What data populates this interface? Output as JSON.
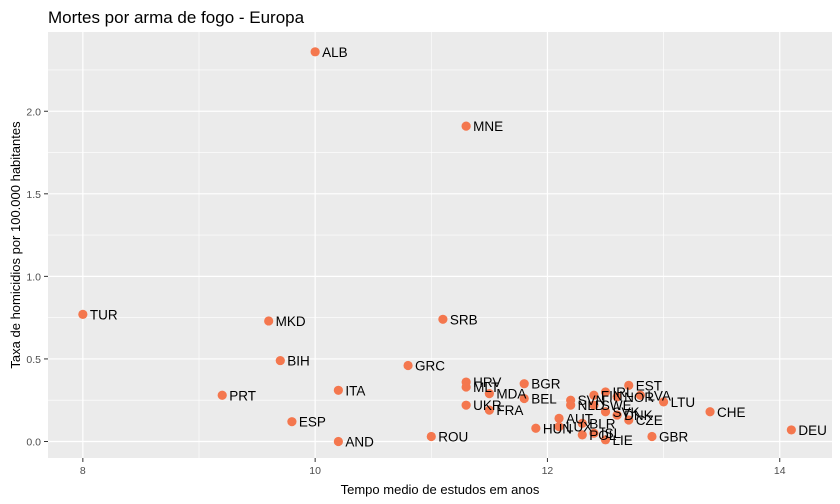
{
  "chart_data": {
    "type": "scatter",
    "title": "Mortes por arma de fogo - Europa",
    "xlabel": "Tempo medio de estudos em anos",
    "ylabel": "Taxa de homicidios por 100.000 habitantes",
    "xlim": [
      7.7,
      14.45
    ],
    "ylim": [
      -0.1,
      2.48
    ],
    "xticks": [
      8,
      10,
      12,
      14
    ],
    "yticks": [
      0.0,
      0.5,
      1.0,
      1.5,
      2.0
    ],
    "ytick_labels": [
      "0.0",
      "0.5",
      "1.0",
      "1.5",
      "2.0"
    ],
    "grid": true,
    "point_color": "#F4774E",
    "panel_background": "#EBEBEB",
    "points": [
      {
        "label": "ALB",
        "x": 10.0,
        "y": 2.36
      },
      {
        "label": "MNE",
        "x": 11.3,
        "y": 1.91
      },
      {
        "label": "TUR",
        "x": 8.0,
        "y": 0.77
      },
      {
        "label": "MKD",
        "x": 9.6,
        "y": 0.73
      },
      {
        "label": "SRB",
        "x": 11.1,
        "y": 0.74
      },
      {
        "label": "BIH",
        "x": 9.7,
        "y": 0.49
      },
      {
        "label": "GRC",
        "x": 10.8,
        "y": 0.46
      },
      {
        "label": "ITA",
        "x": 10.2,
        "y": 0.31
      },
      {
        "label": "PRT",
        "x": 9.2,
        "y": 0.28
      },
      {
        "label": "ESP",
        "x": 9.8,
        "y": 0.12
      },
      {
        "label": "AND",
        "x": 10.2,
        "y": 0.0
      },
      {
        "label": "ROU",
        "x": 11.0,
        "y": 0.03
      },
      {
        "label": "HRV",
        "x": 11.3,
        "y": 0.36
      },
      {
        "label": "MLT",
        "x": 11.3,
        "y": 0.33
      },
      {
        "label": "UKR",
        "x": 11.3,
        "y": 0.22
      },
      {
        "label": "MDA",
        "x": 11.5,
        "y": 0.29
      },
      {
        "label": "FRA",
        "x": 11.5,
        "y": 0.19
      },
      {
        "label": "BGR",
        "x": 11.8,
        "y": 0.35
      },
      {
        "label": "BEL",
        "x": 11.8,
        "y": 0.26
      },
      {
        "label": "HUN",
        "x": 11.9,
        "y": 0.08
      },
      {
        "label": "AUT",
        "x": 12.1,
        "y": 0.14
      },
      {
        "label": "LUX",
        "x": 12.1,
        "y": 0.09
      },
      {
        "label": "SVN",
        "x": 12.2,
        "y": 0.25
      },
      {
        "label": "NLD",
        "x": 12.2,
        "y": 0.22
      },
      {
        "label": "BLR",
        "x": 12.3,
        "y": 0.11
      },
      {
        "label": "POL",
        "x": 12.3,
        "y": 0.04
      },
      {
        "label": "FIN",
        "x": 12.4,
        "y": 0.28
      },
      {
        "label": "SWE",
        "x": 12.4,
        "y": 0.22
      },
      {
        "label": "ISL",
        "x": 12.4,
        "y": 0.05
      },
      {
        "label": "IRL",
        "x": 12.5,
        "y": 0.3
      },
      {
        "label": "SVK",
        "x": 12.5,
        "y": 0.18
      },
      {
        "label": "LIE",
        "x": 12.5,
        "y": 0.01
      },
      {
        "label": "NOR",
        "x": 12.6,
        "y": 0.27
      },
      {
        "label": "DNK",
        "x": 12.6,
        "y": 0.16
      },
      {
        "label": "EST",
        "x": 12.7,
        "y": 0.34
      },
      {
        "label": "CZE",
        "x": 12.7,
        "y": 0.13
      },
      {
        "label": "LVA",
        "x": 12.8,
        "y": 0.28
      },
      {
        "label": "GBR",
        "x": 12.9,
        "y": 0.03
      },
      {
        "label": "LTU",
        "x": 13.0,
        "y": 0.24
      },
      {
        "label": "CHE",
        "x": 13.4,
        "y": 0.18
      },
      {
        "label": "DEU",
        "x": 14.1,
        "y": 0.07
      }
    ]
  }
}
